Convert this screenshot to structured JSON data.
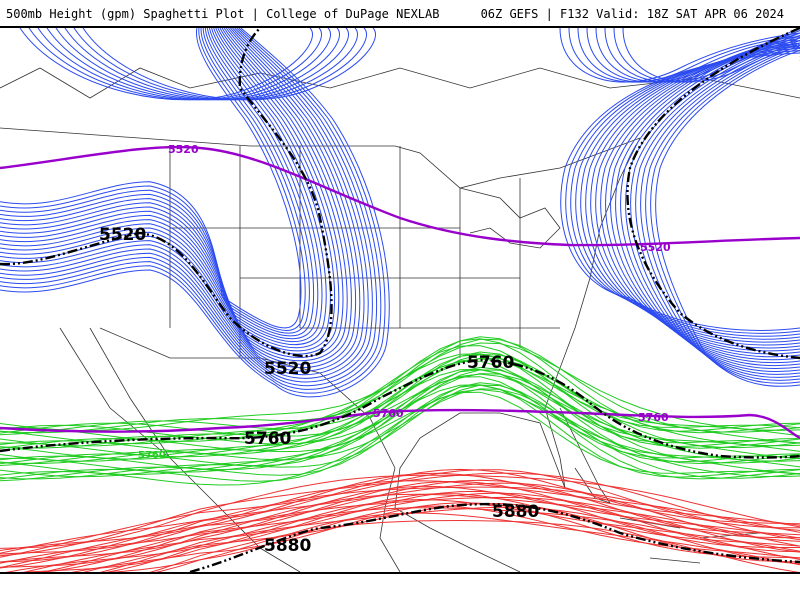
{
  "header": {
    "left": "500mb Height (gpm) Spaghetti Plot | College of DuPage NEXLAB",
    "right": "06Z GEFS | F132 Valid: 18Z SAT APR 06 2024"
  },
  "map": {
    "contour_labels": [
      {
        "text": "5520",
        "type": "mean"
      },
      {
        "text": "5520",
        "type": "mean"
      },
      {
        "text": "5760",
        "type": "mean"
      },
      {
        "text": "5760",
        "type": "mean"
      },
      {
        "text": "5880",
        "type": "mean"
      },
      {
        "text": "5880",
        "type": "mean"
      },
      {
        "text": "5520",
        "type": "climo"
      },
      {
        "text": "5520",
        "type": "climo"
      },
      {
        "text": "5760",
        "type": "climo"
      },
      {
        "text": "5760",
        "type": "climo"
      },
      {
        "text": "5760",
        "type": "member"
      }
    ],
    "colors": {
      "member_5520": "#2c4bf0",
      "member_5760": "#22cc22",
      "member_5880": "#ee3333",
      "ensemble_mean": "#000000",
      "climatology": "#9900cc",
      "borders": "#333333"
    }
  }
}
